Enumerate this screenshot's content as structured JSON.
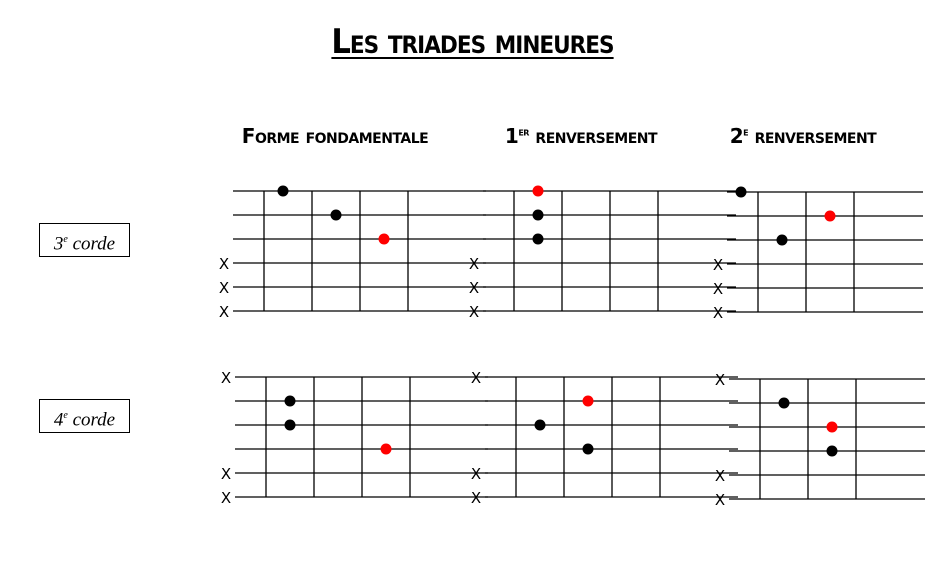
{
  "title": "Les triades mineures",
  "columns": [
    {
      "label": "Forme fondamentale",
      "ordinal": "",
      "sup": ""
    },
    {
      "label": " renversement",
      "ordinal": "1",
      "sup": "er"
    },
    {
      "label": " renversement",
      "ordinal": "2",
      "sup": "e"
    }
  ],
  "rows": [
    {
      "num": "3",
      "sup": "e",
      "label": " corde"
    },
    {
      "num": "4",
      "sup": "e",
      "label": " corde"
    }
  ],
  "colors": {
    "root": "#ff0000",
    "note": "#000000"
  },
  "muted_mark": "X",
  "diagrams": [
    {
      "row": 0,
      "col": 0,
      "frets": 4,
      "muted": [
        4,
        5,
        6
      ],
      "dots": [
        {
          "string": 1,
          "fret": 1,
          "root": false
        },
        {
          "string": 2,
          "fret": 2,
          "root": false
        },
        {
          "string": 3,
          "fret": 3,
          "root": true
        }
      ]
    },
    {
      "row": 0,
      "col": 1,
      "frets": 4,
      "muted": [
        4,
        5,
        6
      ],
      "dots": [
        {
          "string": 1,
          "fret": 1,
          "root": true
        },
        {
          "string": 2,
          "fret": 1,
          "root": false
        },
        {
          "string": 3,
          "fret": 1,
          "root": false
        }
      ]
    },
    {
      "row": 0,
      "col": 2,
      "frets": 3,
      "muted": [
        4,
        5,
        6
      ],
      "dots": [
        {
          "string": 1,
          "fret": 0,
          "root": false
        },
        {
          "string": 2,
          "fret": 2,
          "root": true
        },
        {
          "string": 3,
          "fret": 1,
          "root": false
        }
      ]
    },
    {
      "row": 1,
      "col": 0,
      "frets": 4,
      "muted": [
        1,
        5,
        6
      ],
      "dots": [
        {
          "string": 2,
          "fret": 1,
          "root": false
        },
        {
          "string": 3,
          "fret": 1,
          "root": false
        },
        {
          "string": 4,
          "fret": 3,
          "root": true
        }
      ]
    },
    {
      "row": 1,
      "col": 1,
      "frets": 4,
      "muted": [
        1,
        5,
        6
      ],
      "dots": [
        {
          "string": 2,
          "fret": 2,
          "root": true
        },
        {
          "string": 3,
          "fret": 1,
          "root": false
        },
        {
          "string": 4,
          "fret": 2,
          "root": false
        }
      ]
    },
    {
      "row": 1,
      "col": 2,
      "frets": 3,
      "muted": [
        1,
        5,
        6
      ],
      "dots": [
        {
          "string": 2,
          "fret": 1,
          "root": false
        },
        {
          "string": 3,
          "fret": 2,
          "root": true
        },
        {
          "string": 4,
          "fret": 2,
          "root": false
        }
      ]
    }
  ]
}
